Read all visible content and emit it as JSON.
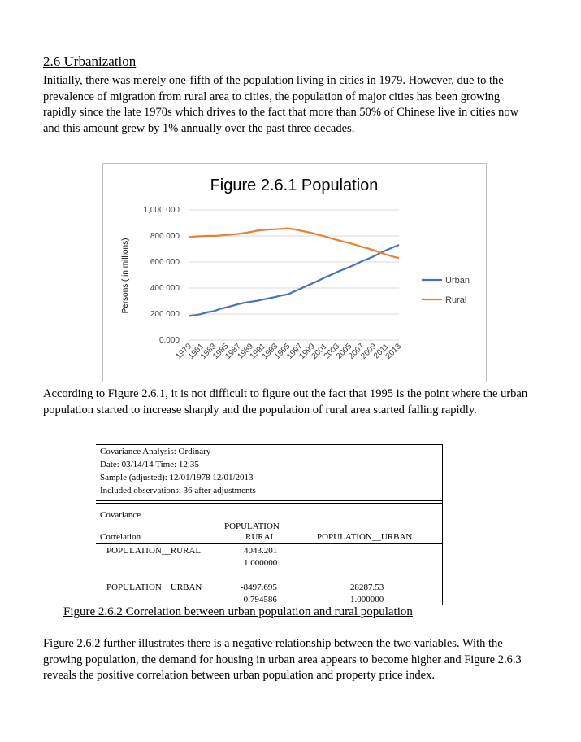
{
  "section": {
    "heading": "2.6 Urbanization",
    "paragraph1": "Initially, there was merely one-fifth of the population living in cities in 1979. However, due to the prevalence of migration from rural area to cities, the population of major cities has been growing rapidly since the late 1970s which drives to the fact that more than 50% of Chinese live in cities now and this amount grew by 1% annually over the past three decades.",
    "paragraph2": "According to Figure 2.6.1, it is not difficult to figure out the fact that 1995 is the point where the urban population started to increase sharply and the population of rural area started falling rapidly.",
    "paragraph3": "Figure 2.6.2 further illustrates there is a negative relationship between the two variables. With the growing population, the demand for housing in urban area appears to become higher and Figure 2.6.3 reveals the positive correlation between urban population and property price index."
  },
  "chart_data": {
    "type": "line",
    "title": "Figure 2.6.1 Population",
    "xlabel": "",
    "ylabel": "Persons ( in millions)",
    "ylim": [
      0,
      1000
    ],
    "yticks": [
      "1,000.000",
      "800.000",
      "600.000",
      "400.000",
      "200.000",
      "0.000"
    ],
    "ytick_values": [
      1000,
      800,
      600,
      400,
      200,
      0
    ],
    "xtick_labels": [
      "1979",
      "1981",
      "1983",
      "1985",
      "1987",
      "1989",
      "1991",
      "1993",
      "1995",
      "1997",
      "1999",
      "2001",
      "2003",
      "2005",
      "2007",
      "2009",
      "2011",
      "2013"
    ],
    "x": [
      1979,
      1980,
      1981,
      1982,
      1983,
      1984,
      1985,
      1986,
      1987,
      1988,
      1989,
      1990,
      1991,
      1992,
      1993,
      1994,
      1995,
      1996,
      1997,
      1998,
      1999,
      2000,
      2001,
      2002,
      2003,
      2004,
      2005,
      2006,
      2007,
      2008,
      2009,
      2010,
      2011,
      2012,
      2013
    ],
    "grid": true,
    "legend_position": "right",
    "series": [
      {
        "name": "Urban",
        "color": "#4472C4",
        "values": [
          185,
          191,
          201,
          215,
          222,
          240,
          251,
          264,
          277,
          287,
          295,
          302,
          312,
          322,
          332,
          343,
          352,
          374,
          394,
          416,
          437,
          459,
          481,
          502,
          524,
          543,
          562,
          583,
          606,
          625,
          645,
          670,
          691,
          712,
          731
        ]
      },
      {
        "name": "Rural",
        "color": "#ED7D31",
        "values": [
          790,
          796,
          799,
          801,
          800,
          803,
          808,
          812,
          816,
          824,
          831,
          841,
          846,
          850,
          852,
          855,
          859,
          851,
          841,
          832,
          821,
          808,
          796,
          782,
          769,
          757,
          745,
          731,
          715,
          704,
          689,
          671,
          656,
          642,
          630
        ]
      }
    ]
  },
  "covariance": {
    "lines": [
      "Covariance Analysis: Ordinary",
      "Date: 03/14/14   Time: 12:35",
      "Sample (adjusted): 12/01/1978 12/01/2013",
      "Included observations: 36 after adjustments"
    ],
    "row_header_1": "Covariance",
    "row_header_2": "Correlation",
    "col1_line1": "POPULATION__",
    "col1_line2": "RURAL",
    "col2": "POPULATION__URBAN",
    "row1_label": "POPULATION__RURAL",
    "row1_cov": "4043.201",
    "row1_corr": "1.000000",
    "row2_label": "POPULATION__URBAN",
    "row2_cov1": "-8497.695",
    "row2_corr1": "-0.794586",
    "row2_cov2": "28287.53",
    "row2_corr2": "1.000000"
  },
  "caption": "Figure 2.6.2 Correlation between urban population and rural population"
}
